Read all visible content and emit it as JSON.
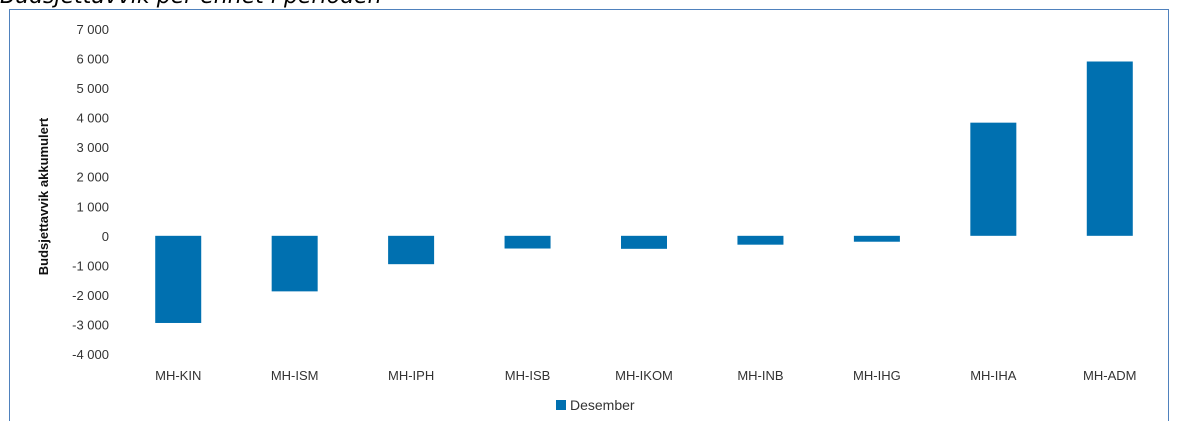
{
  "caption": "Budsjettavvik per enhet i perioden",
  "chart_data": {
    "type": "bar",
    "categories": [
      "MH-KIN",
      "MH-ISM",
      "MH-IPH",
      "MH-ISB",
      "MH-IKOM",
      "MH-INB",
      "MH-IHG",
      "MH-IHA",
      "MH-ADM"
    ],
    "series": [
      {
        "name": "Desember",
        "values": [
          -2950,
          -1880,
          -960,
          -430,
          -440,
          -300,
          -200,
          3830,
          5900
        ],
        "color": "#0070b0"
      }
    ],
    "ylabel": "Budsjettavvik akkumulert",
    "xlabel": "",
    "ylim": [
      -4000,
      7000
    ],
    "yticks": [
      7000,
      6000,
      5000,
      4000,
      3000,
      2000,
      1000,
      0,
      -1000,
      -2000,
      -3000,
      -4000
    ],
    "ytick_labels": [
      "7 000",
      "6 000",
      "5 000",
      "4 000",
      "3 000",
      "2 000",
      "1 000",
      "0",
      "-1 000",
      "-2 000",
      "-3 000",
      "-4 000"
    ],
    "grid": false,
    "legend": "bottom-center"
  }
}
